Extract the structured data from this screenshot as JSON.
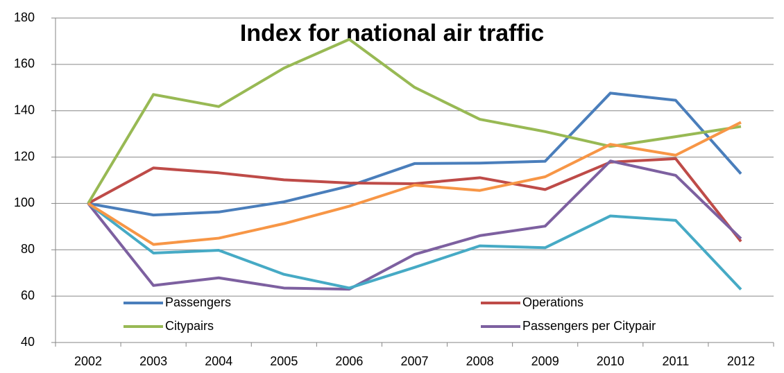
{
  "chart_data": {
    "type": "line",
    "title": "Index for national air traffic",
    "categories": [
      "2002",
      "2003",
      "2004",
      "2005",
      "2006",
      "2007",
      "2008",
      "2009",
      "2010",
      "2011",
      "2012"
    ],
    "series": [
      {
        "name": "Passengers",
        "color": "#4a7ebb",
        "values": [
          100,
          95,
          96.3,
          100.7,
          107.5,
          117.2,
          117.4,
          118.2,
          147.6,
          144.5,
          112.8
        ]
      },
      {
        "name": "Operations",
        "color": "#be4b48",
        "values": [
          100,
          115.3,
          113.2,
          110.2,
          108.8,
          108.5,
          111.1,
          106,
          117.8,
          119.3,
          83.6
        ]
      },
      {
        "name": "Citypairs",
        "color": "#98b954",
        "values": [
          100,
          147,
          141.8,
          158.4,
          170.8,
          150.1,
          136.3,
          131,
          124.6,
          128.8,
          133.2
        ]
      },
      {
        "name": "Passengers per Citypair",
        "color": "#7d60a0",
        "values": [
          100,
          64.6,
          67.9,
          63.5,
          63,
          78,
          86.1,
          90.2,
          118.3,
          112.1,
          84.8
        ]
      },
      {
        "color": "#46aac5",
        "values": [
          100,
          78.6,
          79.8,
          69.4,
          63.5,
          72.4,
          81.7,
          80.9,
          94.6,
          92.7,
          62.9
        ]
      },
      {
        "color": "#f79646",
        "values": [
          100,
          82.3,
          85,
          91.3,
          98.8,
          107.9,
          105.6,
          111.5,
          125.5,
          120.8,
          135
        ]
      }
    ],
    "ylim": [
      40,
      180
    ],
    "yticks": [
      40,
      60,
      80,
      100,
      120,
      140,
      160,
      180
    ],
    "grid": true
  }
}
